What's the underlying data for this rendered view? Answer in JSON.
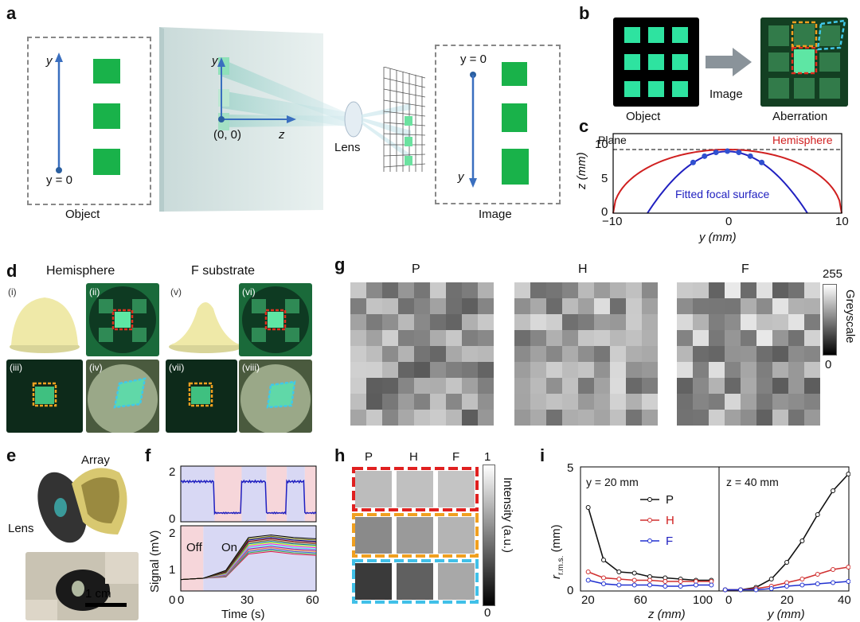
{
  "panels": {
    "a": "a",
    "b": "b",
    "c": "c",
    "d": "d",
    "e": "e",
    "f": "f",
    "g": "g",
    "h": "h",
    "i": "i"
  },
  "a": {
    "object_label": "Object",
    "image_label": "Image",
    "lens_label": "Lens",
    "origin": "(0, 0)",
    "y_eq0_left": "y = 0",
    "y_eq0_right": "y = 0",
    "y": "y",
    "z": "z"
  },
  "b": {
    "object": "Object",
    "image": "Image",
    "aberration": "Aberration"
  },
  "c": {
    "plane": "Plane",
    "hemisphere": "Hemisphere",
    "fitted": "Fitted focal surface",
    "xlabel": "y (mm)",
    "ylabel": "z (mm)",
    "xticks": [
      "−10",
      "0",
      "10"
    ],
    "yticks": [
      "0",
      "5",
      "10"
    ]
  },
  "d": {
    "hemisphere": "Hemisphere",
    "fsub": "F substrate",
    "subs": [
      "(i)",
      "(ii)",
      "(iii)",
      "(iv)",
      "(v)",
      "(vi)",
      "(vii)",
      "(viii)"
    ]
  },
  "e": {
    "array": "Array",
    "lens": "Lens",
    "scale": "1 cm"
  },
  "f": {
    "ylabel": "Signal (mV)",
    "xlabel": "Time (s)",
    "off": "Off",
    "on": "On",
    "yticks_top": [
      "2",
      "0"
    ],
    "yticks_bot": [
      "2",
      "1",
      "0"
    ],
    "xticks": [
      "0",
      "30",
      "60"
    ]
  },
  "g": {
    "titles": [
      "P",
      "H",
      "F"
    ],
    "cbar_max": "255",
    "cbar_min": "0",
    "cbar_label": "Greyscale"
  },
  "h": {
    "cols": [
      "P",
      "H",
      "F"
    ],
    "cbar_max": "1",
    "cbar_min": "0",
    "cbar_label": "Intensity (a.u.)"
  },
  "i": {
    "left_note": "y = 20 mm",
    "right_note": "z = 40 mm",
    "ylabel": "r",
    "ylabel_sub": "r.m.s.",
    "ylabel_unit": " (mm)",
    "xlabel_left": "z (mm)",
    "xlabel_right": "y (mm)",
    "yticks": [
      "5",
      "0"
    ],
    "xticks_left": [
      "20",
      "60",
      "100"
    ],
    "xticks_right": [
      "0",
      "20",
      "40"
    ],
    "legend": [
      "P",
      "H",
      "F"
    ]
  },
  "chart_data": [
    {
      "type": "line",
      "panel": "c",
      "xlabel": "y (mm)",
      "ylabel": "z (mm)",
      "xlim": [
        -10,
        10
      ],
      "ylim": [
        0,
        10
      ],
      "series": [
        {
          "name": "Plane",
          "x": [
            -10,
            10
          ],
          "y": [
            10,
            10
          ]
        },
        {
          "name": "Hemisphere",
          "x": [
            -10,
            -8,
            -6,
            -4,
            -2,
            0,
            2,
            4,
            6,
            8,
            10
          ],
          "y": [
            0,
            6,
            8,
            9.17,
            9.8,
            10,
            9.8,
            9.17,
            8,
            6,
            0
          ]
        },
        {
          "name": "Fitted focal surface",
          "x": [
            -7,
            -5,
            -3,
            -2,
            0,
            2,
            3,
            5,
            7
          ],
          "y": [
            0,
            5,
            8.3,
            9.2,
            9.7,
            9.2,
            8.3,
            5,
            0
          ]
        }
      ]
    },
    {
      "type": "line",
      "panel": "i-left",
      "xlabel": "z (mm)",
      "ylabel": "r r.m.s. (mm)",
      "xlim": [
        15,
        105
      ],
      "ylim": [
        0,
        5
      ],
      "x": [
        20,
        30,
        40,
        50,
        60,
        70,
        80,
        90,
        100
      ],
      "series": [
        {
          "name": "P",
          "values": [
            3.5,
            1.3,
            0.8,
            0.75,
            0.6,
            0.55,
            0.5,
            0.45,
            0.45
          ]
        },
        {
          "name": "H",
          "values": [
            0.8,
            0.55,
            0.5,
            0.45,
            0.45,
            0.4,
            0.4,
            0.4,
            0.4
          ]
        },
        {
          "name": "F",
          "values": [
            0.45,
            0.3,
            0.25,
            0.25,
            0.25,
            0.2,
            0.2,
            0.25,
            0.25
          ]
        }
      ]
    },
    {
      "type": "line",
      "panel": "i-right",
      "xlabel": "y (mm)",
      "ylabel": "r r.m.s. (mm)",
      "xlim": [
        -2,
        43
      ],
      "ylim": [
        0,
        5
      ],
      "x": [
        0,
        5,
        10,
        15,
        20,
        25,
        30,
        35,
        40
      ],
      "series": [
        {
          "name": "P",
          "values": [
            0.05,
            0.05,
            0.15,
            0.5,
            1.2,
            2.1,
            3.2,
            4.2,
            4.9
          ]
        },
        {
          "name": "H",
          "values": [
            0.05,
            0.05,
            0.1,
            0.2,
            0.35,
            0.5,
            0.7,
            0.9,
            1.0
          ]
        },
        {
          "name": "F",
          "values": [
            0.05,
            0.05,
            0.05,
            0.1,
            0.2,
            0.25,
            0.3,
            0.35,
            0.4
          ]
        }
      ]
    }
  ]
}
